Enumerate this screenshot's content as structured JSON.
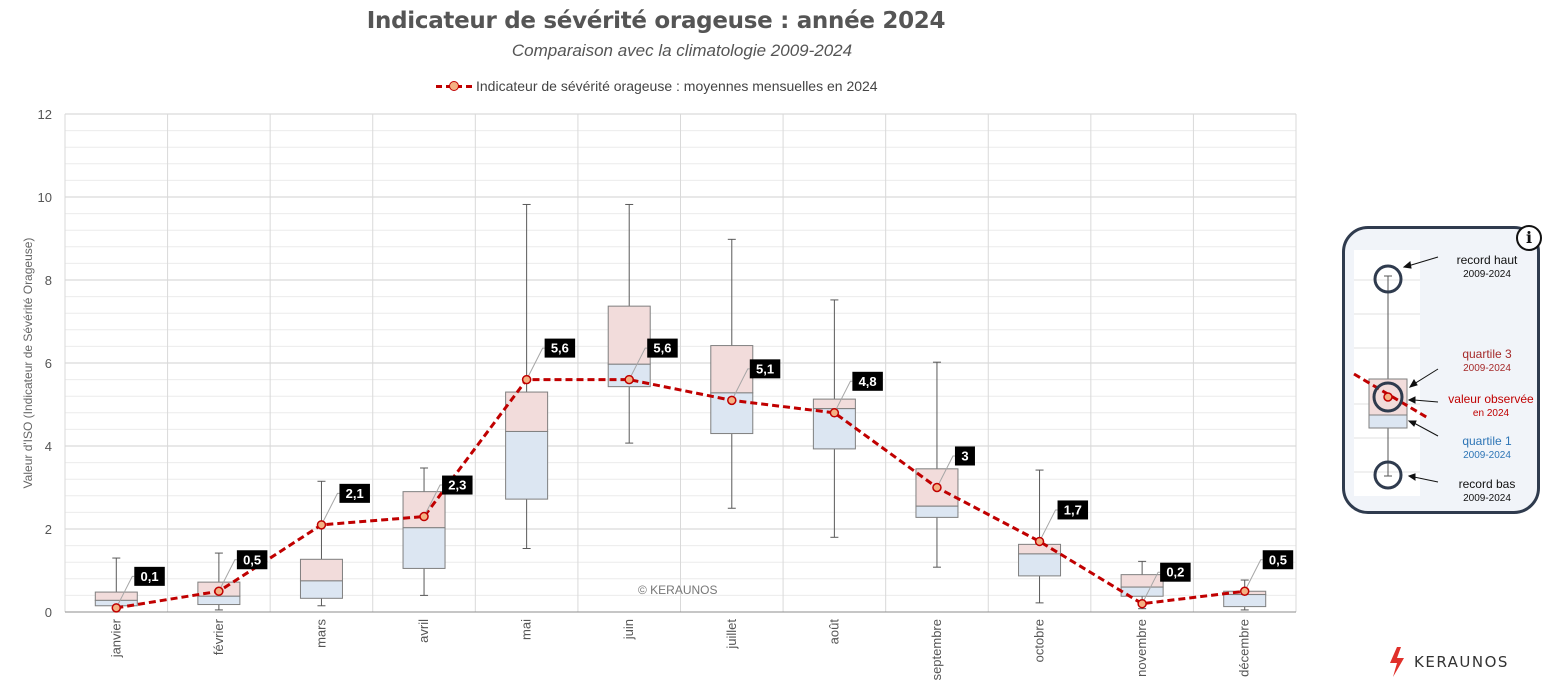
{
  "title": "Indicateur de sévérité orageuse : année 2024",
  "subtitle": "Comparaison avec la climatologie 2009-2024",
  "legend_label": "Indicateur de sévérité orageuse : moyennes mensuelles en 2024",
  "ylabel": "Valeur d'ISO (Indicateur de Sévérité Orageuse)",
  "copyright": "© KERAUNOS",
  "logo_text": "KERAUNOS",
  "info_icon": "i",
  "info_panel": {
    "record_haut": "record haut",
    "record_haut_sub": "2009-2024",
    "q3": "quartile 3",
    "q3_sub": "2009-2024",
    "observed": "valeur observée",
    "observed_sub": "en 2024",
    "q1": "quartile 1",
    "q1_sub": "2009-2024",
    "record_bas": "record bas",
    "record_bas_sub": "2009-2024"
  },
  "colors": {
    "line": "#c00000",
    "marker_fill": "#f4b183",
    "box_upper": "#f2dcdb",
    "box_lower": "#dce6f2",
    "box_border": "#7f7f7f",
    "label_bg": "#000000",
    "info_border": "#2f3b4e",
    "q3_text": "#a52a2a",
    "q1_text": "#2e75b6",
    "observed_text": "#c00000"
  },
  "chart_data": {
    "type": "box",
    "categories": [
      "janvier",
      "février",
      "mars",
      "avril",
      "mai",
      "juin",
      "juillet",
      "août",
      "septembre",
      "octobre",
      "novembre",
      "décembre"
    ],
    "ylim": [
      0,
      12
    ],
    "yticks": [
      0,
      2,
      4,
      6,
      8,
      10,
      12
    ],
    "grid": true,
    "legend_position": "top",
    "boxes": [
      {
        "min": 0.05,
        "q1": 0.15,
        "median": 0.28,
        "q3": 0.48,
        "max": 1.3
      },
      {
        "min": 0.05,
        "q1": 0.18,
        "median": 0.38,
        "q3": 0.72,
        "max": 1.42
      },
      {
        "min": 0.15,
        "q1": 0.33,
        "median": 0.75,
        "q3": 1.27,
        "max": 3.15
      },
      {
        "min": 0.4,
        "q1": 1.05,
        "median": 2.03,
        "q3": 2.9,
        "max": 3.47
      },
      {
        "min": 1.53,
        "q1": 2.72,
        "median": 4.35,
        "q3": 5.3,
        "max": 9.82
      },
      {
        "min": 4.07,
        "q1": 5.43,
        "median": 5.97,
        "q3": 7.37,
        "max": 9.82
      },
      {
        "min": 2.5,
        "q1": 4.3,
        "median": 5.28,
        "q3": 6.42,
        "max": 8.98
      },
      {
        "min": 1.8,
        "q1": 3.93,
        "median": 4.9,
        "q3": 5.13,
        "max": 7.52
      },
      {
        "min": 1.08,
        "q1": 2.28,
        "median": 2.55,
        "q3": 3.45,
        "max": 6.02
      },
      {
        "min": 0.22,
        "q1": 0.87,
        "median": 1.4,
        "q3": 1.63,
        "max": 3.42
      },
      {
        "min": 0.08,
        "q1": 0.38,
        "median": 0.6,
        "q3": 0.9,
        "max": 1.22
      },
      {
        "min": 0.05,
        "q1": 0.13,
        "median": 0.42,
        "q3": 0.5,
        "max": 0.77
      }
    ],
    "series": [
      {
        "name": "Indicateur de sévérité orageuse : moyennes mensuelles en 2024",
        "values": [
          0.1,
          0.5,
          2.1,
          2.3,
          5.6,
          5.6,
          5.1,
          4.8,
          3,
          1.7,
          0.2,
          0.5
        ],
        "labels": [
          "0,1",
          "0,5",
          "2,1",
          "2,3",
          "5,6",
          "5,6",
          "5,1",
          "4,8",
          "3",
          "1,7",
          "0,2",
          "0,5"
        ]
      }
    ]
  }
}
